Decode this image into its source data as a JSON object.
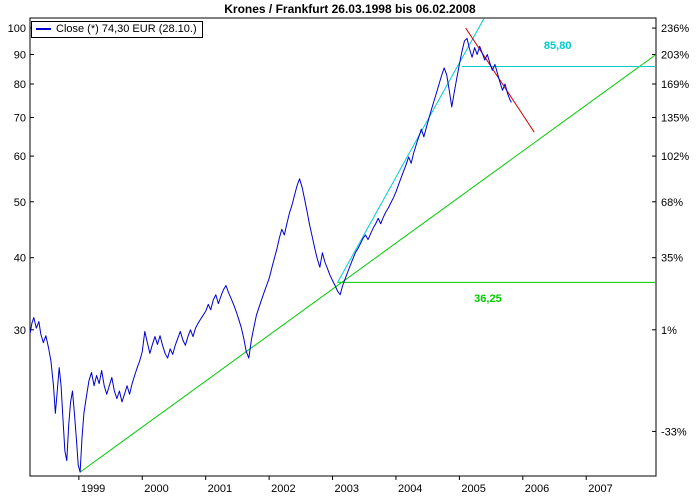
{
  "chart_data": {
    "type": "line",
    "title": "Krones / Frankfurt 26.03.1998 bis 06.02.2008",
    "legend": {
      "label": "Close (*) 74,30 EUR (28.10.)"
    },
    "x_axis": {
      "range": [
        1998.23,
        2008.1
      ],
      "ticks": [
        1999,
        2000,
        2001,
        2002,
        2003,
        2004,
        2005,
        2006,
        2007
      ]
    },
    "y_axis": {
      "scale": "log",
      "range": [
        16.74,
        104.1
      ],
      "left_ticks": [
        100,
        90,
        80,
        70,
        60,
        50,
        40,
        30
      ],
      "right_ticks": [
        {
          "price": 100,
          "label": "236%"
        },
        {
          "price": 90,
          "label": "203%"
        },
        {
          "price": 80,
          "label": "169%"
        },
        {
          "price": 70,
          "label": "135%"
        },
        {
          "price": 60,
          "label": "102%"
        },
        {
          "price": 50,
          "label": "68%"
        },
        {
          "price": 40,
          "label": "35%"
        },
        {
          "price": 30,
          "label": "1%"
        },
        {
          "price": 20,
          "label": "-33%"
        }
      ]
    },
    "series": {
      "name": "Close",
      "color": "#0000CC",
      "points": [
        [
          1998.23,
          29.5
        ],
        [
          1998.26,
          30.8
        ],
        [
          1998.29,
          31.5
        ],
        [
          1998.33,
          30.2
        ],
        [
          1998.37,
          31.0
        ],
        [
          1998.4,
          29.5
        ],
        [
          1998.44,
          28.5
        ],
        [
          1998.48,
          29.3
        ],
        [
          1998.52,
          28.0
        ],
        [
          1998.56,
          26.5
        ],
        [
          1998.6,
          24.0
        ],
        [
          1998.63,
          21.5
        ],
        [
          1998.66,
          23.5
        ],
        [
          1998.69,
          25.8
        ],
        [
          1998.72,
          24.0
        ],
        [
          1998.75,
          21.0
        ],
        [
          1998.78,
          18.5
        ],
        [
          1998.81,
          17.8
        ],
        [
          1998.84,
          20.5
        ],
        [
          1998.87,
          22.5
        ],
        [
          1998.9,
          23.5
        ],
        [
          1998.93,
          21.5
        ],
        [
          1998.96,
          19.5
        ],
        [
          1998.99,
          17.5
        ],
        [
          1999.02,
          17.0
        ],
        [
          1999.05,
          19.5
        ],
        [
          1999.08,
          21.5
        ],
        [
          1999.12,
          23.0
        ],
        [
          1999.16,
          24.5
        ],
        [
          1999.2,
          25.3
        ],
        [
          1999.24,
          24.0
        ],
        [
          1999.28,
          25.0
        ],
        [
          1999.32,
          24.2
        ],
        [
          1999.36,
          25.5
        ],
        [
          1999.4,
          24.0
        ],
        [
          1999.44,
          23.2
        ],
        [
          1999.48,
          24.0
        ],
        [
          1999.52,
          24.8
        ],
        [
          1999.56,
          23.5
        ],
        [
          1999.6,
          22.8
        ],
        [
          1999.64,
          23.5
        ],
        [
          1999.68,
          22.5
        ],
        [
          1999.72,
          23.2
        ],
        [
          1999.76,
          24.0
        ],
        [
          1999.8,
          23.2
        ],
        [
          1999.84,
          24.2
        ],
        [
          1999.88,
          25.0
        ],
        [
          1999.92,
          25.8
        ],
        [
          1999.96,
          26.5
        ],
        [
          2000.0,
          27.5
        ],
        [
          2000.04,
          29.8
        ],
        [
          2000.08,
          28.5
        ],
        [
          2000.12,
          27.3
        ],
        [
          2000.16,
          28.3
        ],
        [
          2000.2,
          29.2
        ],
        [
          2000.24,
          28.3
        ],
        [
          2000.28,
          29.3
        ],
        [
          2000.32,
          28.2
        ],
        [
          2000.36,
          27.3
        ],
        [
          2000.4,
          26.8
        ],
        [
          2000.44,
          27.8
        ],
        [
          2000.48,
          27.2
        ],
        [
          2000.52,
          28.2
        ],
        [
          2000.56,
          29.0
        ],
        [
          2000.6,
          29.8
        ],
        [
          2000.64,
          28.8
        ],
        [
          2000.68,
          28.2
        ],
        [
          2000.72,
          29.2
        ],
        [
          2000.76,
          30.0
        ],
        [
          2000.8,
          29.2
        ],
        [
          2000.84,
          30.2
        ],
        [
          2000.88,
          30.8
        ],
        [
          2000.92,
          31.3
        ],
        [
          2000.96,
          31.8
        ],
        [
          2001.0,
          32.3
        ],
        [
          2001.04,
          33.2
        ],
        [
          2001.08,
          32.5
        ],
        [
          2001.12,
          33.8
        ],
        [
          2001.16,
          34.5
        ],
        [
          2001.2,
          33.3
        ],
        [
          2001.24,
          34.3
        ],
        [
          2001.28,
          35.2
        ],
        [
          2001.32,
          35.8
        ],
        [
          2001.36,
          34.8
        ],
        [
          2001.4,
          34.0
        ],
        [
          2001.44,
          33.2
        ],
        [
          2001.48,
          32.3
        ],
        [
          2001.52,
          31.3
        ],
        [
          2001.56,
          30.3
        ],
        [
          2001.6,
          29.0
        ],
        [
          2001.64,
          27.5
        ],
        [
          2001.68,
          26.8
        ],
        [
          2001.72,
          28.8
        ],
        [
          2001.76,
          30.3
        ],
        [
          2001.8,
          31.8
        ],
        [
          2001.84,
          32.8
        ],
        [
          2001.88,
          33.8
        ],
        [
          2001.92,
          34.8
        ],
        [
          2001.96,
          35.8
        ],
        [
          2002.0,
          36.8
        ],
        [
          2002.04,
          38.3
        ],
        [
          2002.08,
          39.8
        ],
        [
          2002.12,
          41.3
        ],
        [
          2002.16,
          43.2
        ],
        [
          2002.2,
          44.8
        ],
        [
          2002.24,
          43.8
        ],
        [
          2002.28,
          45.8
        ],
        [
          2002.32,
          47.8
        ],
        [
          2002.36,
          49.3
        ],
        [
          2002.4,
          51.3
        ],
        [
          2002.44,
          53.3
        ],
        [
          2002.48,
          54.8
        ],
        [
          2002.52,
          53.0
        ],
        [
          2002.56,
          50.5
        ],
        [
          2002.6,
          48.0
        ],
        [
          2002.64,
          45.5
        ],
        [
          2002.68,
          43.5
        ],
        [
          2002.72,
          41.5
        ],
        [
          2002.76,
          39.8
        ],
        [
          2002.8,
          38.5
        ],
        [
          2002.84,
          40.8
        ],
        [
          2002.88,
          39.3
        ],
        [
          2002.92,
          38.3
        ],
        [
          2002.96,
          37.3
        ],
        [
          2003.0,
          36.5
        ],
        [
          2003.04,
          35.8
        ],
        [
          2003.08,
          35.0
        ],
        [
          2003.12,
          34.5
        ],
        [
          2003.16,
          35.8
        ],
        [
          2003.2,
          36.8
        ],
        [
          2003.24,
          37.8
        ],
        [
          2003.28,
          38.8
        ],
        [
          2003.32,
          39.8
        ],
        [
          2003.36,
          40.8
        ],
        [
          2003.4,
          41.5
        ],
        [
          2003.44,
          42.3
        ],
        [
          2003.48,
          43.2
        ],
        [
          2003.52,
          43.8
        ],
        [
          2003.56,
          43.0
        ],
        [
          2003.6,
          44.0
        ],
        [
          2003.64,
          45.0
        ],
        [
          2003.68,
          45.8
        ],
        [
          2003.72,
          46.8
        ],
        [
          2003.76,
          45.8
        ],
        [
          2003.8,
          47.0
        ],
        [
          2003.84,
          48.0
        ],
        [
          2003.88,
          48.8
        ],
        [
          2003.92,
          49.8
        ],
        [
          2003.96,
          50.8
        ],
        [
          2004.0,
          52.0
        ],
        [
          2004.04,
          53.5
        ],
        [
          2004.08,
          55.0
        ],
        [
          2004.12,
          56.5
        ],
        [
          2004.16,
          58.0
        ],
        [
          2004.2,
          59.8
        ],
        [
          2004.24,
          58.3
        ],
        [
          2004.28,
          60.8
        ],
        [
          2004.32,
          62.8
        ],
        [
          2004.36,
          64.8
        ],
        [
          2004.4,
          66.8
        ],
        [
          2004.44,
          64.8
        ],
        [
          2004.48,
          67.3
        ],
        [
          2004.52,
          69.8
        ],
        [
          2004.56,
          72.3
        ],
        [
          2004.6,
          74.8
        ],
        [
          2004.64,
          77.3
        ],
        [
          2004.68,
          80.0
        ],
        [
          2004.72,
          82.8
        ],
        [
          2004.76,
          85.3
        ],
        [
          2004.8,
          83.0
        ],
        [
          2004.84,
          78.0
        ],
        [
          2004.88,
          73.0
        ],
        [
          2004.92,
          77.5
        ],
        [
          2004.96,
          82.0
        ],
        [
          2005.0,
          86.5
        ],
        [
          2005.04,
          91.0
        ],
        [
          2005.08,
          95.0
        ],
        [
          2005.12,
          96.0
        ],
        [
          2005.16,
          92.0
        ],
        [
          2005.2,
          89.0
        ],
        [
          2005.24,
          92.5
        ],
        [
          2005.28,
          90.0
        ],
        [
          2005.32,
          93.0
        ],
        [
          2005.36,
          90.5
        ],
        [
          2005.4,
          88.0
        ],
        [
          2005.44,
          90.0
        ],
        [
          2005.48,
          87.0
        ],
        [
          2005.52,
          84.5
        ],
        [
          2005.56,
          86.5
        ],
        [
          2005.6,
          83.5
        ],
        [
          2005.64,
          80.5
        ],
        [
          2005.68,
          78.0
        ],
        [
          2005.72,
          80.0
        ],
        [
          2005.76,
          77.0
        ],
        [
          2005.8,
          75.0
        ],
        [
          2005.82,
          74.3
        ]
      ]
    },
    "overlays": [
      {
        "name": "uptrend-support-line",
        "color": "#00CC00",
        "points": [
          [
            1999.02,
            17.0
          ],
          [
            2008.1,
            90.0
          ]
        ]
      },
      {
        "name": "horizontal-support-line",
        "color": "#00CC00",
        "points": [
          [
            2003.08,
            36.25
          ],
          [
            2008.1,
            36.25
          ]
        ]
      },
      {
        "name": "accelerated-uptrend-line",
        "color": "#00CCCC",
        "points": [
          [
            2003.08,
            36.25
          ],
          [
            2005.39,
            104.0
          ]
        ]
      },
      {
        "name": "horizontal-resistance-line",
        "color": "#00CCCC",
        "points": [
          [
            2005.04,
            85.8
          ],
          [
            2008.1,
            85.8
          ]
        ]
      },
      {
        "name": "downtrend-line",
        "color": "#CC0000",
        "points": [
          [
            2005.1,
            100.0
          ],
          [
            2006.18,
            66.0
          ]
        ]
      }
    ],
    "annotations": [
      {
        "text": "85,80",
        "color": "#00CCCC",
        "t": 2006.55,
        "p": 92.0,
        "size": 15
      },
      {
        "text": "36,25",
        "color": "#00CC00",
        "t": 2005.45,
        "p": 33.5,
        "size": 15
      }
    ],
    "axis_color": "#000000",
    "background": "#FFFFFF"
  }
}
